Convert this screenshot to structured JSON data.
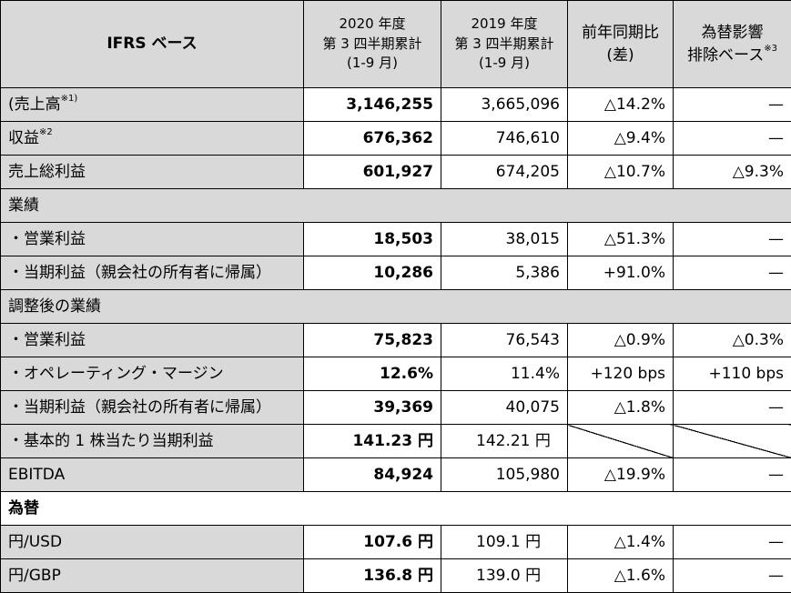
{
  "header": {
    "ifrs": "IFRS ベース",
    "col2020": [
      "2020 年度",
      "第 3 四半期累計",
      "(1-9 月)"
    ],
    "col2019": [
      "2019 年度",
      "第 3 四半期累計",
      "(1-9 月)"
    ],
    "yoy": [
      "前年同期比",
      "(差)"
    ],
    "fx_excl": [
      "為替影響",
      "排除ベース"
    ],
    "fx_excl_note": "※3"
  },
  "rows": {
    "sales": {
      "label": "(売上高",
      "note": "※1)",
      "v2020": "3,146,255",
      "v2019": "3,665,096",
      "yoy": "△14.2%",
      "fx": "—"
    },
    "revenue": {
      "label": "収益",
      "note": "※2",
      "v2020": "676,362",
      "v2019": "746,610",
      "yoy": "△9.4%",
      "fx": "—"
    },
    "gross": {
      "label": "売上総利益",
      "v2020": "601,927",
      "v2019": "674,205",
      "yoy": "△10.7%",
      "fx": "△9.3%"
    },
    "sec_results": {
      "label": "業績"
    },
    "op": {
      "label": "・営業利益",
      "v2020": "18,503",
      "v2019": "38,015",
      "yoy": "△51.3%",
      "fx": "—"
    },
    "net": {
      "label": "・当期利益（親会社の所有者に帰属）",
      "v2020": "10,286",
      "v2019": "5,386",
      "yoy": "+91.0%",
      "fx": "—"
    },
    "sec_adjusted": {
      "label": "調整後の業績"
    },
    "adj_op": {
      "label": "・営業利益",
      "v2020": "75,823",
      "v2019": "76,543",
      "yoy": "△0.9%",
      "fx": "△0.3%"
    },
    "margin": {
      "label": "・オペレーティング・マージン",
      "v2020": "12.6%",
      "v2019": "11.4%",
      "yoy": "+120 bps",
      "fx": "+110 bps"
    },
    "adj_net": {
      "label": "・当期利益（親会社の所有者に帰属）",
      "v2020": "39,369",
      "v2019": "40,075",
      "yoy": "△1.8%",
      "fx": "—"
    },
    "eps": {
      "label": "・基本的 1 株当たり当期利益",
      "v2020": "141.23 円",
      "v2019": "142.21 円"
    },
    "ebitda": {
      "label": "EBITDA",
      "v2020": "84,924",
      "v2019": "105,980",
      "yoy": "△19.9%",
      "fx": "—"
    },
    "sec_fx": {
      "label": "為替"
    },
    "usd": {
      "label": "円/USD",
      "v2020": "107.6 円",
      "v2019": "109.1 円",
      "yoy": "△1.4%",
      "fx": "—"
    },
    "gbp": {
      "label": "円/GBP",
      "v2020": "136.8 円",
      "v2019": "139.0 円",
      "yoy": "△1.6%",
      "fx": "—"
    }
  }
}
